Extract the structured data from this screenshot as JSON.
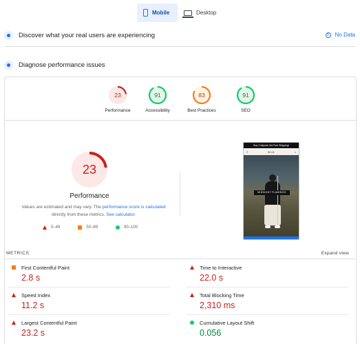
{
  "tabs": [
    {
      "label": "Mobile",
      "icon": "phone-icon",
      "active": true
    },
    {
      "label": "Desktop",
      "icon": "desktop-icon",
      "active": false
    }
  ],
  "discover": {
    "title": "Discover what your real users are experiencing",
    "status": "No Data"
  },
  "diagnose": {
    "title": "Diagnose performance issues"
  },
  "categories": [
    {
      "label": "Performance",
      "score": "23",
      "color": "#c5221f",
      "bg": "#fce8e6"
    },
    {
      "label": "Accessibility",
      "score": "91",
      "color": "#0cce6b",
      "bg": "#e6f4ea"
    },
    {
      "label": "Best Practices",
      "score": "83",
      "color": "#fa7b17",
      "bg": "#fff4e5"
    },
    {
      "label": "SEO",
      "score": "91",
      "color": "#0cce6b",
      "bg": "#e6f4ea"
    }
  ],
  "performance": {
    "score": "23",
    "title": "Performance",
    "note_pre": "Values are estimated and may vary. The",
    "note_link1": "performance score is calculated",
    "note_mid": "directly from these metrics.",
    "note_link2": "See calculator."
  },
  "legend": [
    {
      "range": "0–49",
      "shape": "triangle"
    },
    {
      "range": "50–89",
      "shape": "square"
    },
    {
      "range": "90–100",
      "shape": "circle"
    }
  ],
  "preview": {
    "banner": "Buy 2 Adjusts Get Free Shipping!",
    "logo": "B·LD",
    "cta": "MIDNIGHT FLAMINGO"
  },
  "metrics": {
    "heading": "METRICS",
    "expand": "Expand view",
    "items": [
      {
        "label": "First Contentful Paint",
        "value": "2.8 s",
        "status": "average"
      },
      {
        "label": "Time to Interactive",
        "value": "22.0 s",
        "status": "fail"
      },
      {
        "label": "Speed Index",
        "value": "11.2 s",
        "status": "fail"
      },
      {
        "label": "Total Blocking Time",
        "value": "2,310 ms",
        "status": "fail"
      },
      {
        "label": "Largest Contentful Paint",
        "value": "23.2 s",
        "status": "fail"
      },
      {
        "label": "Cumulative Layout Shift",
        "value": "0.056",
        "status": "pass"
      }
    ]
  }
}
